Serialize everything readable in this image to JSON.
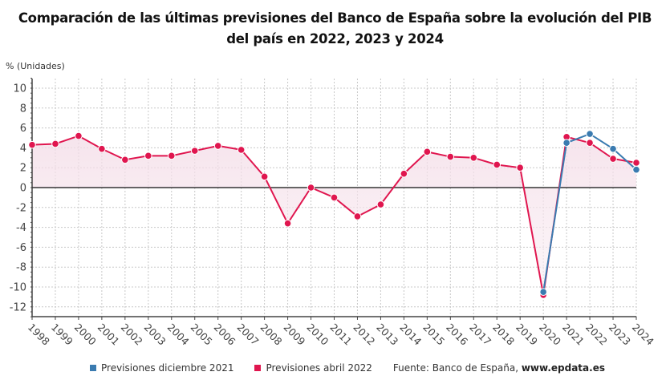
{
  "chart_data": {
    "type": "line",
    "title": "Comparación de las últimas previsiones del Banco de España sobre la evolución del PIB del país en 2022, 2023 y 2024",
    "title_lines": [
      "Comparación de las últimas previsiones del Banco de España sobre la evolución del PIB",
      "del país en 2022, 2023 y 2024"
    ],
    "ylabel": "% (Unidades)",
    "xlabel": "",
    "ylim": [
      -13,
      11
    ],
    "yticks": [
      10,
      8,
      6,
      4,
      2,
      0,
      -2,
      -4,
      -6,
      -8,
      -10,
      -12
    ],
    "grid": true,
    "x": [
      "1998",
      "1999",
      "2000",
      "2001",
      "2002",
      "2003",
      "2004",
      "2005",
      "2006",
      "2007",
      "2008",
      "2009",
      "2010",
      "2011",
      "2012",
      "2013",
      "2014",
      "2015",
      "2016",
      "2017",
      "2018",
      "2019",
      "2020",
      "2021",
      "2022",
      "2023",
      "2024"
    ],
    "series": [
      {
        "name": "Previsiones diciembre 2021",
        "color": "#3a7bb0",
        "x_start": "2020",
        "values": [
          -10.5,
          4.5,
          5.4,
          3.9,
          1.8
        ]
      },
      {
        "name": "Previsiones abril 2022",
        "color": "#e0164f",
        "x_start": "1998",
        "values": [
          4.3,
          4.4,
          5.2,
          3.9,
          2.8,
          3.2,
          3.2,
          3.7,
          4.2,
          3.8,
          1.1,
          -3.6,
          0.0,
          -1.0,
          -2.9,
          -1.7,
          1.4,
          3.6,
          3.1,
          3.0,
          2.3,
          2.0,
          -10.8,
          5.1,
          4.5,
          2.9,
          2.5
        ]
      }
    ],
    "legend_position": "bottom"
  },
  "footer": {
    "source_label": "Fuente: Banco de España, ",
    "source_link": "www.epdata.es"
  }
}
